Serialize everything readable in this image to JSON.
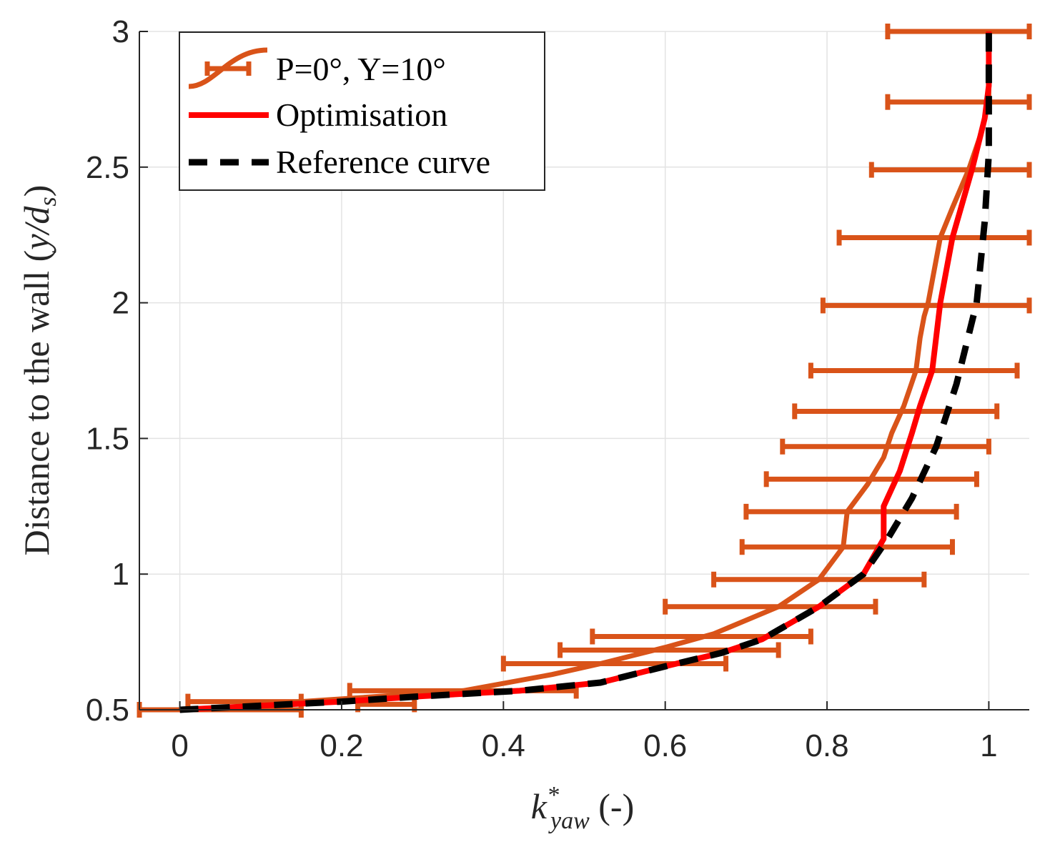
{
  "chart_data": {
    "type": "line",
    "title": "",
    "xlabel": {
      "main": "k",
      "superscript": "*",
      "subscript": "yaw",
      "suffix": " (-)"
    },
    "ylabel": {
      "main": "Distance to the wall (",
      "var": "y/d",
      "subscript": "s",
      "suffix": ")"
    },
    "xlim": [
      -0.05,
      1.05
    ],
    "ylim": [
      0.5,
      3
    ],
    "xticks": [
      0,
      0.2,
      0.4,
      0.6,
      0.8,
      1
    ],
    "xtick_labels": [
      "0",
      "0.2",
      "0.4",
      "0.6",
      "0.8",
      "1"
    ],
    "yticks": [
      0.5,
      1,
      1.5,
      2,
      2.5,
      3
    ],
    "ytick_labels": [
      "0.5",
      "1",
      "1.5",
      "2",
      "2.5",
      "3"
    ],
    "grid": true,
    "legend_position": "top-left",
    "series": [
      {
        "name": "P=0°, Y=10°",
        "style": "solid-errorbar",
        "color": "#D95319",
        "x": [
          0.05,
          0.1,
          0.35,
          0.46,
          0.52,
          0.6,
          0.66,
          0.74,
          0.79,
          0.82,
          0.825,
          0.85,
          0.87,
          0.88,
          0.895,
          0.91,
          0.915,
          0.92,
          0.925,
          0.94,
          0.955,
          0.975,
          0.99,
          1.0,
          1.0
        ],
        "y": [
          0.5,
          0.52,
          0.57,
          0.63,
          0.67,
          0.73,
          0.78,
          0.88,
          0.98,
          1.1,
          1.23,
          1.33,
          1.43,
          1.52,
          1.62,
          1.75,
          1.87,
          1.95,
          2.0,
          2.24,
          2.35,
          2.49,
          2.62,
          2.75,
          3.0
        ],
        "errorbars": [
          {
            "y": 0.5,
            "xmin": -0.05,
            "xmax": 0.15
          },
          {
            "y": 0.53,
            "xmin": 0.01,
            "xmax": 0.15
          },
          {
            "y": 0.52,
            "xmin": 0.22,
            "xmax": 0.29
          },
          {
            "y": 0.57,
            "xmin": 0.21,
            "xmax": 0.49
          },
          {
            "y": 0.67,
            "xmin": 0.4,
            "xmax": 0.675
          },
          {
            "y": 0.72,
            "xmin": 0.47,
            "xmax": 0.74
          },
          {
            "y": 0.77,
            "xmin": 0.51,
            "xmax": 0.78
          },
          {
            "y": 0.88,
            "xmin": 0.6,
            "xmax": 0.86
          },
          {
            "y": 0.98,
            "xmin": 0.66,
            "xmax": 0.92
          },
          {
            "y": 1.1,
            "xmin": 0.695,
            "xmax": 0.955
          },
          {
            "y": 1.23,
            "xmin": 0.7,
            "xmax": 0.96
          },
          {
            "y": 1.35,
            "xmin": 0.725,
            "xmax": 0.985
          },
          {
            "y": 1.47,
            "xmin": 0.745,
            "xmax": 1.0
          },
          {
            "y": 1.6,
            "xmin": 0.76,
            "xmax": 1.01
          },
          {
            "y": 1.75,
            "xmin": 0.78,
            "xmax": 1.035
          },
          {
            "y": 1.99,
            "xmin": 0.795,
            "xmax": 1.05
          },
          {
            "y": 2.24,
            "xmin": 0.815,
            "xmax": 1.05
          },
          {
            "y": 2.49,
            "xmin": 0.855,
            "xmax": 1.05
          },
          {
            "y": 2.74,
            "xmin": 0.875,
            "xmax": 1.05
          },
          {
            "y": 3.0,
            "xmin": 0.875,
            "xmax": 1.05
          }
        ]
      },
      {
        "name": "Optimisation",
        "style": "solid",
        "color": "#FF0000",
        "x": [
          0.0,
          0.2,
          0.3,
          0.42,
          0.52,
          0.6,
          0.67,
          0.72,
          0.79,
          0.845,
          0.87,
          0.87,
          0.89,
          0.905,
          0.915,
          0.93,
          0.94,
          0.955,
          0.98,
          0.995,
          1.0,
          1.0
        ],
        "y": [
          0.5,
          0.53,
          0.55,
          0.57,
          0.6,
          0.66,
          0.71,
          0.76,
          0.88,
          1.0,
          1.13,
          1.25,
          1.38,
          1.52,
          1.62,
          1.75,
          2.0,
          2.24,
          2.5,
          2.68,
          2.8,
          3.0
        ]
      },
      {
        "name": "Reference curve",
        "style": "dashed",
        "color": "#000000",
        "x": [
          0.0,
          0.2,
          0.3,
          0.42,
          0.52,
          0.6,
          0.67,
          0.72,
          0.79,
          0.845,
          0.875,
          0.905,
          0.935,
          0.96,
          0.985,
          0.995,
          1.0,
          1.0
        ],
        "y": [
          0.5,
          0.53,
          0.55,
          0.57,
          0.6,
          0.66,
          0.71,
          0.76,
          0.88,
          1.0,
          1.13,
          1.28,
          1.47,
          1.7,
          2.0,
          2.3,
          2.55,
          3.0
        ]
      }
    ]
  }
}
